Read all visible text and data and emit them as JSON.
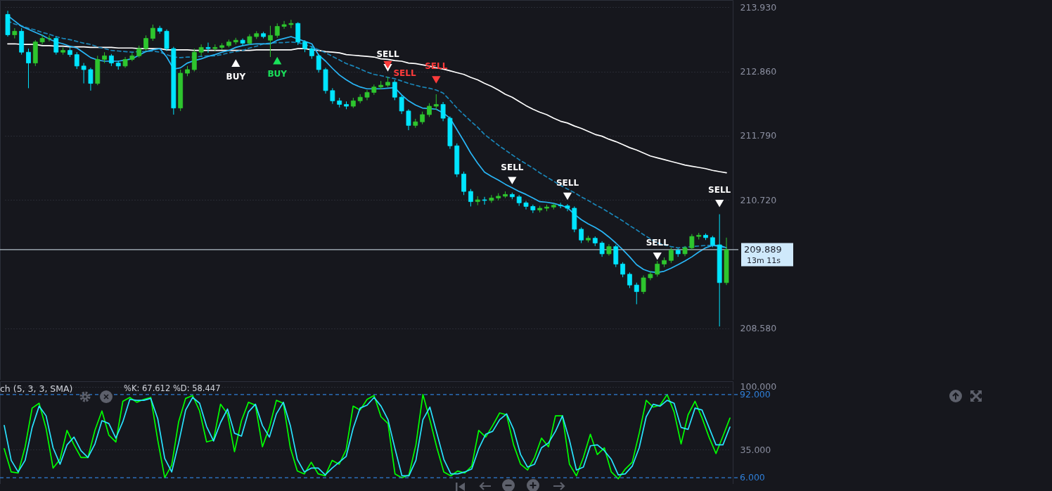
{
  "chart_data": [
    {
      "type": "candlestick",
      "categories": [
        null,
        null,
        null,
        null,
        null,
        null,
        null,
        null,
        null,
        null,
        null,
        null,
        null,
        null,
        null,
        null,
        null,
        null,
        null,
        null,
        null,
        null,
        null,
        null,
        null,
        null,
        null,
        null,
        null,
        null,
        null,
        null,
        null,
        null,
        null,
        null,
        null,
        null,
        null,
        null,
        null,
        null,
        null,
        null,
        null,
        null,
        null,
        null,
        null,
        null,
        null,
        null,
        null,
        null,
        null,
        null,
        null,
        null,
        null,
        null,
        null,
        null,
        null,
        null,
        null,
        null,
        null,
        null,
        null,
        null,
        null,
        null,
        null,
        null,
        null,
        null,
        null,
        null,
        null,
        null,
        null,
        null,
        null,
        null,
        null,
        null,
        null,
        null,
        null,
        null,
        null,
        null,
        null,
        null,
        null,
        null,
        null,
        null,
        null,
        null,
        null,
        null,
        null,
        null,
        null
      ],
      "ohlc": [
        [
          213.81,
          213.87,
          213.44,
          213.47
        ],
        [
          213.47,
          213.58,
          213.41,
          213.53
        ],
        [
          213.53,
          213.58,
          213.14,
          213.18
        ],
        [
          213.18,
          213.24,
          212.58,
          213.0
        ],
        [
          213.0,
          213.38,
          212.95,
          213.35
        ],
        [
          213.35,
          213.47,
          213.31,
          213.41
        ],
        [
          213.41,
          213.46,
          213.36,
          213.41
        ],
        [
          213.41,
          213.44,
          213.14,
          213.18
        ],
        [
          213.18,
          213.26,
          213.14,
          213.21
        ],
        [
          213.21,
          213.26,
          213.1,
          213.14
        ],
        [
          213.14,
          213.18,
          212.9,
          212.95
        ],
        [
          212.95,
          213.0,
          212.66,
          212.89
        ],
        [
          212.89,
          212.92,
          212.54,
          212.66
        ],
        [
          212.66,
          213.12,
          212.63,
          213.06
        ],
        [
          213.06,
          213.18,
          213.0,
          213.12
        ],
        [
          213.12,
          213.15,
          212.95,
          213.0
        ],
        [
          213.0,
          213.04,
          212.89,
          212.95
        ],
        [
          212.95,
          213.1,
          212.92,
          213.06
        ],
        [
          213.06,
          213.17,
          213.03,
          213.12
        ],
        [
          213.12,
          213.29,
          213.09,
          213.24
        ],
        [
          213.24,
          213.46,
          213.2,
          213.41
        ],
        [
          213.41,
          213.64,
          213.37,
          213.58
        ],
        [
          213.58,
          213.62,
          213.49,
          213.53
        ],
        [
          213.53,
          213.56,
          213.2,
          213.24
        ],
        [
          213.24,
          213.27,
          212.14,
          212.25
        ],
        [
          212.25,
          212.89,
          212.2,
          212.83
        ],
        [
          212.83,
          212.95,
          212.78,
          212.89
        ],
        [
          212.89,
          213.24,
          212.86,
          213.18
        ],
        [
          213.18,
          213.31,
          213.12,
          213.26
        ],
        [
          213.26,
          213.34,
          213.17,
          213.24
        ],
        [
          213.24,
          213.31,
          213.2,
          213.26
        ],
        [
          213.26,
          213.33,
          213.22,
          213.29
        ],
        [
          213.29,
          213.39,
          213.26,
          213.35
        ],
        [
          213.35,
          213.42,
          213.31,
          213.38
        ],
        [
          213.38,
          213.41,
          213.29,
          213.33
        ],
        [
          213.33,
          213.48,
          213.3,
          213.44
        ],
        [
          213.44,
          213.53,
          213.4,
          213.49
        ],
        [
          213.49,
          213.52,
          213.41,
          213.44
        ],
        [
          213.38,
          213.62,
          213.1,
          213.46
        ],
        [
          213.46,
          213.66,
          213.42,
          213.61
        ],
        [
          213.61,
          213.7,
          213.57,
          213.64
        ],
        [
          213.64,
          213.72,
          213.58,
          213.66
        ],
        [
          213.66,
          213.68,
          213.3,
          213.35
        ],
        [
          213.35,
          213.38,
          213.18,
          213.24
        ],
        [
          213.24,
          213.28,
          213.07,
          213.12
        ],
        [
          213.12,
          213.15,
          212.84,
          212.89
        ],
        [
          212.89,
          212.92,
          212.49,
          212.54
        ],
        [
          212.54,
          212.58,
          212.32,
          212.37
        ],
        [
          212.37,
          212.42,
          212.26,
          212.31
        ],
        [
          212.31,
          212.36,
          212.23,
          212.28
        ],
        [
          212.28,
          212.42,
          212.25,
          212.37
        ],
        [
          212.37,
          212.48,
          212.33,
          212.43
        ],
        [
          212.43,
          212.55,
          212.38,
          212.51
        ],
        [
          212.51,
          212.64,
          212.47,
          212.6
        ],
        [
          212.6,
          212.7,
          212.56,
          212.63
        ],
        [
          212.63,
          212.77,
          212.6,
          212.68
        ],
        [
          212.68,
          212.72,
          212.38,
          212.43
        ],
        [
          212.43,
          212.46,
          212.15,
          212.2
        ],
        [
          212.2,
          212.23,
          211.88,
          211.96
        ],
        [
          211.96,
          212.07,
          211.92,
          212.02
        ],
        [
          212.02,
          212.19,
          211.98,
          212.14
        ],
        [
          212.14,
          212.33,
          212.1,
          212.28
        ],
        [
          212.28,
          212.48,
          212.22,
          212.31
        ],
        [
          212.31,
          212.35,
          212.03,
          212.08
        ],
        [
          212.08,
          212.11,
          211.57,
          211.62
        ],
        [
          211.62,
          211.66,
          211.1,
          211.15
        ],
        [
          211.15,
          211.19,
          210.8,
          210.86
        ],
        [
          210.86,
          210.9,
          210.61,
          210.69
        ],
        [
          210.69,
          210.78,
          210.63,
          210.72
        ],
        [
          210.72,
          210.77,
          210.64,
          210.71
        ],
        [
          210.71,
          210.8,
          210.67,
          210.75
        ],
        [
          210.75,
          210.83,
          210.71,
          210.78
        ],
        [
          210.78,
          210.86,
          210.75,
          210.81
        ],
        [
          210.81,
          210.84,
          210.73,
          210.77
        ],
        [
          210.77,
          210.8,
          210.62,
          210.67
        ],
        [
          210.67,
          210.7,
          210.56,
          210.61
        ],
        [
          210.61,
          210.64,
          210.5,
          210.55
        ],
        [
          210.55,
          210.62,
          210.51,
          210.58
        ],
        [
          210.58,
          210.64,
          210.53,
          210.6
        ],
        [
          210.6,
          210.66,
          210.56,
          210.63
        ],
        [
          210.63,
          210.67,
          210.58,
          210.62
        ],
        [
          210.62,
          210.65,
          210.53,
          210.58
        ],
        [
          210.58,
          210.61,
          210.18,
          210.23
        ],
        [
          210.23,
          210.26,
          210.0,
          210.05
        ],
        [
          210.05,
          210.12,
          210.01,
          210.08
        ],
        [
          210.08,
          210.11,
          209.95,
          210.0
        ],
        [
          210.0,
          210.03,
          209.77,
          209.82
        ],
        [
          209.82,
          209.98,
          209.79,
          209.94
        ],
        [
          209.94,
          209.97,
          209.6,
          209.65
        ],
        [
          209.65,
          209.68,
          209.43,
          209.48
        ],
        [
          209.48,
          209.51,
          209.25,
          209.3
        ],
        [
          209.3,
          209.34,
          208.98,
          209.19
        ],
        [
          209.19,
          209.46,
          209.15,
          209.42
        ],
        [
          209.42,
          209.53,
          209.38,
          209.48
        ],
        [
          209.48,
          209.7,
          209.44,
          209.65
        ],
        [
          209.65,
          209.76,
          209.6,
          209.71
        ],
        [
          209.71,
          209.92,
          209.67,
          209.88
        ],
        [
          209.88,
          209.91,
          209.77,
          209.82
        ],
        [
          209.82,
          209.95,
          209.78,
          209.92
        ],
        [
          209.92,
          210.15,
          209.88,
          210.11
        ],
        [
          210.11,
          210.17,
          210.06,
          210.13
        ],
        [
          210.13,
          210.16,
          210.05,
          210.09
        ],
        [
          210.09,
          210.12,
          209.93,
          209.97
        ],
        [
          209.97,
          210.48,
          208.61,
          209.34
        ],
        [
          209.34,
          210.09,
          209.3,
          209.889
        ]
      ],
      "colors": [
        "#00e5ff",
        "#2ec52e",
        "#00e5ff",
        "#00e5ff",
        "#2ec52e",
        "#2ec52e",
        "#2ec52e",
        "#00e5ff",
        "#2ec52e",
        "#00e5ff",
        "#00e5ff",
        "#00e5ff",
        "#00e5ff",
        "#2ec52e",
        "#2ec52e",
        "#00e5ff",
        "#00e5ff",
        "#2ec52e",
        "#2ec52e",
        "#2ec52e",
        "#2ec52e",
        "#2ec52e",
        "#00e5ff",
        "#00e5ff",
        "#00e5ff",
        "#2ec52e",
        "#2ec52e",
        "#2ec52e",
        "#2ec52e",
        "#00e5ff",
        "#2ec52e",
        "#2ec52e",
        "#2ec52e",
        "#2ec52e",
        "#00e5ff",
        "#2ec52e",
        "#2ec52e",
        "#00e5ff",
        "#2ec52e",
        "#2ec52e",
        "#2ec52e",
        "#2ec52e",
        "#00e5ff",
        "#00e5ff",
        "#00e5ff",
        "#00e5ff",
        "#00e5ff",
        "#00e5ff",
        "#00e5ff",
        "#00e5ff",
        "#2ec52e",
        "#2ec52e",
        "#2ec52e",
        "#2ec52e",
        "#2ec52e",
        "#2ec52e",
        "#00e5ff",
        "#00e5ff",
        "#00e5ff",
        "#2ec52e",
        "#2ec52e",
        "#2ec52e",
        "#2ec52e",
        "#00e5ff",
        "#00e5ff",
        "#00e5ff",
        "#00e5ff",
        "#00e5ff",
        "#2ec52e",
        "#00e5ff",
        "#2ec52e",
        "#2ec52e",
        "#2ec52e",
        "#00e5ff",
        "#00e5ff",
        "#00e5ff",
        "#00e5ff",
        "#2ec52e",
        "#2ec52e",
        "#2ec52e",
        "#00e5ff",
        "#00e5ff",
        "#00e5ff",
        "#00e5ff",
        "#2ec52e",
        "#00e5ff",
        "#00e5ff",
        "#2ec52e",
        "#00e5ff",
        "#00e5ff",
        "#00e5ff",
        "#00e5ff",
        "#2ec52e",
        "#2ec52e",
        "#2ec52e",
        "#2ec52e",
        "#2ec52e",
        "#00e5ff",
        "#2ec52e",
        "#2ec52e",
        "#2ec52e",
        "#00e5ff",
        "#00e5ff",
        "#00e5ff",
        "#2ec52e"
      ],
      "series": [
        {
          "type": "line",
          "color": "#ffffff",
          "line_style": "solid",
          "values": [
            213.32,
            213.32,
            213.31,
            213.31,
            213.31,
            213.29,
            213.29,
            213.28,
            213.28,
            213.27,
            213.27,
            213.27,
            213.26,
            213.26,
            213.26,
            213.26,
            213.25,
            213.25,
            213.25,
            213.24,
            213.24,
            213.24,
            213.24,
            213.22,
            213.22,
            213.22,
            213.22,
            213.21,
            213.21,
            213.21,
            213.21,
            213.21,
            213.21,
            213.21,
            213.21,
            213.21,
            213.22,
            213.22,
            213.22,
            213.22,
            213.22,
            213.22,
            213.24,
            213.24,
            213.22,
            213.21,
            213.19,
            213.18,
            213.17,
            213.14,
            213.13,
            213.12,
            213.11,
            213.1,
            213.07,
            213.06,
            213.04,
            213.03,
            213.0,
            212.99,
            212.97,
            212.95,
            212.92,
            212.9,
            212.87,
            212.84,
            212.81,
            212.76,
            212.72,
            212.66,
            212.61,
            212.55,
            212.48,
            212.43,
            212.36,
            212.29,
            212.23,
            212.18,
            212.14,
            212.08,
            212.03,
            212.0,
            211.95,
            211.91,
            211.86,
            211.81,
            211.78,
            211.73,
            211.69,
            211.64,
            211.59,
            211.55,
            211.5,
            211.45,
            211.42,
            211.39,
            211.36,
            211.33,
            211.3,
            211.28,
            211.26,
            211.24,
            211.21,
            211.19,
            211.17
          ]
        },
        {
          "type": "line",
          "color": "#1a86b8",
          "line_style": "dashed",
          "values": [
            213.7,
            213.65,
            213.62,
            213.58,
            213.55,
            213.51,
            213.48,
            213.44,
            213.41,
            213.39,
            213.36,
            213.33,
            213.31,
            213.27,
            213.24,
            213.21,
            213.2,
            213.19,
            213.18,
            213.19,
            213.19,
            213.2,
            213.18,
            213.14,
            213.1,
            213.09,
            213.1,
            213.1,
            213.11,
            213.12,
            213.12,
            213.14,
            213.17,
            213.19,
            213.21,
            213.25,
            213.28,
            213.32,
            213.33,
            213.34,
            213.34,
            213.35,
            213.34,
            213.31,
            213.27,
            213.22,
            213.17,
            213.11,
            213.05,
            212.99,
            212.95,
            212.9,
            212.85,
            212.81,
            212.79,
            212.76,
            212.74,
            212.7,
            212.66,
            212.63,
            212.6,
            212.58,
            212.55,
            212.5,
            212.38,
            212.25,
            212.14,
            212.03,
            211.93,
            211.81,
            211.72,
            211.63,
            211.55,
            211.47,
            211.39,
            211.32,
            211.25,
            211.17,
            211.1,
            211.03,
            210.96,
            210.9,
            210.84,
            210.77,
            210.71,
            210.64,
            210.58,
            210.51,
            210.44,
            210.37,
            210.29,
            210.22,
            210.14,
            210.07,
            210.0,
            209.97,
            209.94,
            209.92,
            209.93,
            209.94,
            209.95,
            209.96,
            209.96,
            209.94,
            209.92
          ]
        },
        {
          "type": "line",
          "color": "#29b6f6",
          "line_style": "solid",
          "values": [
            213.79,
            213.7,
            213.61,
            213.56,
            213.51,
            213.46,
            213.4,
            213.35,
            213.32,
            213.28,
            213.25,
            213.17,
            213.09,
            213.05,
            213.03,
            213.03,
            213.03,
            213.05,
            213.07,
            213.13,
            213.19,
            213.22,
            213.24,
            213.1,
            212.9,
            212.92,
            213.0,
            213.04,
            213.07,
            213.11,
            213.14,
            213.18,
            213.21,
            213.26,
            213.29,
            213.31,
            213.32,
            213.32,
            213.32,
            213.38,
            213.41,
            213.44,
            213.4,
            213.36,
            213.32,
            213.13,
            213.03,
            212.91,
            212.8,
            212.72,
            212.65,
            212.6,
            212.57,
            212.57,
            212.57,
            212.58,
            212.59,
            212.47,
            212.37,
            212.3,
            212.25,
            212.24,
            212.23,
            212.17,
            212.08,
            211.89,
            211.7,
            211.5,
            211.33,
            211.18,
            211.11,
            211.05,
            210.98,
            210.92,
            210.86,
            210.81,
            210.75,
            210.69,
            210.68,
            210.66,
            210.63,
            210.59,
            210.48,
            210.39,
            210.32,
            210.26,
            210.19,
            210.1,
            210.0,
            209.89,
            209.77,
            209.64,
            209.56,
            209.52,
            209.51,
            209.53,
            209.58,
            209.64,
            209.7,
            209.77,
            209.85,
            209.92,
            209.96,
            209.96,
            209.92
          ]
        },
        {
          "type": "scatter",
          "color": "#ffffff",
          "marker": "triangle",
          "values": [
            null,
            null,
            null,
            null,
            null,
            null,
            null,
            null,
            null,
            null,
            null,
            null,
            null,
            null,
            null,
            null,
            null,
            null,
            null,
            null,
            null,
            null,
            null,
            null,
            null,
            null,
            null,
            null,
            null,
            null,
            null,
            null,
            null,
            213.0,
            null,
            null,
            null,
            null,
            null,
            null,
            null,
            null,
            null,
            null,
            null,
            null,
            null,
            null,
            null,
            null,
            null,
            null,
            null,
            null,
            null,
            212.92,
            null,
            null,
            null,
            null,
            null,
            null,
            null,
            null,
            null,
            null,
            null,
            null,
            null,
            null,
            null,
            null,
            null,
            211.04,
            null,
            null,
            null,
            null,
            null,
            null,
            null,
            210.78,
            null,
            null,
            null,
            null,
            null,
            null,
            null,
            null,
            null,
            null,
            null,
            null,
            209.78,
            null,
            null,
            null,
            null,
            null,
            null,
            null,
            null,
            210.66,
            null
          ],
          "value_labels": [
            null,
            null,
            null,
            null,
            null,
            null,
            null,
            null,
            null,
            null,
            null,
            null,
            null,
            null,
            null,
            null,
            null,
            null,
            null,
            null,
            null,
            null,
            null,
            null,
            null,
            null,
            null,
            null,
            null,
            null,
            null,
            null,
            null,
            "BUY",
            null,
            null,
            null,
            null,
            null,
            null,
            null,
            null,
            null,
            null,
            null,
            null,
            null,
            null,
            null,
            null,
            null,
            null,
            null,
            null,
            null,
            "SELL",
            null,
            null,
            null,
            null,
            null,
            null,
            null,
            null,
            null,
            null,
            null,
            null,
            null,
            null,
            null,
            null,
            null,
            "SELL",
            null,
            null,
            null,
            null,
            null,
            null,
            null,
            "SELL",
            null,
            null,
            null,
            null,
            null,
            null,
            null,
            null,
            null,
            null,
            null,
            null,
            "SELL",
            null,
            null,
            null,
            null,
            null,
            null,
            null,
            null,
            "SELL",
            null
          ]
        },
        {
          "type": "scatter",
          "color": "#19e05a",
          "marker": "triangle",
          "values": [
            null,
            null,
            null,
            null,
            null,
            null,
            null,
            null,
            null,
            null,
            null,
            null,
            null,
            null,
            null,
            null,
            null,
            null,
            null,
            null,
            null,
            null,
            null,
            null,
            null,
            null,
            null,
            null,
            null,
            null,
            null,
            null,
            null,
            null,
            null,
            null,
            null,
            null,
            null,
            213.04,
            null,
            null,
            null,
            null,
            null,
            null,
            null,
            null,
            null,
            null,
            null,
            null,
            null,
            null,
            null,
            null,
            null,
            null,
            null,
            null,
            null,
            null,
            null,
            null,
            null,
            null,
            null,
            null,
            null,
            null,
            null,
            null,
            null,
            null,
            null,
            null,
            null,
            null,
            null,
            null,
            null,
            null,
            null,
            null,
            null,
            null,
            null,
            null,
            null,
            null,
            null,
            null,
            null,
            null,
            null,
            null,
            null,
            null,
            null,
            null,
            null,
            null,
            null,
            null,
            null
          ],
          "value_labels": [
            null,
            null,
            null,
            null,
            null,
            null,
            null,
            null,
            null,
            null,
            null,
            null,
            null,
            null,
            null,
            null,
            null,
            null,
            null,
            null,
            null,
            null,
            null,
            null,
            null,
            null,
            null,
            null,
            null,
            null,
            null,
            null,
            null,
            null,
            null,
            null,
            null,
            null,
            null,
            "BUY",
            null,
            null,
            null,
            null,
            null,
            null,
            null,
            null,
            null,
            null,
            null,
            null,
            null,
            null,
            null,
            null,
            null,
            null,
            null,
            null,
            null,
            null,
            null,
            null,
            null,
            null,
            null,
            null,
            null,
            null,
            null,
            null,
            null,
            null,
            null,
            null,
            null,
            null,
            null,
            null,
            null,
            null,
            null,
            null,
            null,
            null,
            null,
            null,
            null,
            null,
            null,
            null,
            null,
            null,
            null,
            null,
            null,
            null,
            null,
            null,
            null,
            null,
            null,
            null,
            null
          ]
        },
        {
          "type": "scatter",
          "color": "#ff3b3b",
          "marker": "triangle",
          "values": [
            null,
            null,
            null,
            null,
            null,
            null,
            null,
            null,
            null,
            null,
            null,
            null,
            null,
            null,
            null,
            null,
            null,
            null,
            null,
            null,
            null,
            null,
            null,
            null,
            null,
            null,
            null,
            null,
            null,
            null,
            null,
            null,
            null,
            null,
            null,
            null,
            null,
            null,
            null,
            null,
            null,
            null,
            null,
            null,
            null,
            null,
            null,
            null,
            null,
            null,
            null,
            null,
            null,
            null,
            null,
            212.97,
            null,
            null,
            null,
            null,
            null,
            null,
            212.72,
            null,
            null,
            null,
            null,
            null,
            null,
            null,
            null,
            null,
            null,
            null,
            null,
            null,
            null,
            null,
            null,
            null,
            null,
            null,
            null,
            null,
            null,
            null,
            null,
            null,
            null,
            null,
            null,
            null,
            null,
            null,
            null,
            null,
            null,
            null,
            null,
            null,
            null,
            null,
            null,
            null,
            null
          ],
          "value_labels": [
            null,
            null,
            null,
            null,
            null,
            null,
            null,
            null,
            null,
            null,
            null,
            null,
            null,
            null,
            null,
            null,
            null,
            null,
            null,
            null,
            null,
            null,
            null,
            null,
            null,
            null,
            null,
            null,
            null,
            null,
            null,
            null,
            null,
            null,
            null,
            null,
            null,
            null,
            null,
            null,
            null,
            null,
            null,
            null,
            null,
            null,
            null,
            null,
            null,
            null,
            null,
            null,
            null,
            null,
            null,
            "SELL",
            null,
            null,
            null,
            null,
            null,
            null,
            "SELL",
            null,
            null,
            null,
            null,
            null,
            null,
            null,
            null,
            null,
            null,
            null,
            null,
            null,
            null,
            null,
            null,
            null,
            null,
            null,
            null,
            null,
            null,
            null,
            null,
            null,
            null,
            null,
            null,
            null,
            null,
            null,
            null,
            null,
            null,
            null,
            null,
            null,
            null,
            null,
            null,
            null,
            null
          ]
        }
      ],
      "ylim": [
        207.72,
        214.05
      ],
      "yticks": [
        {
          "value": 213.93,
          "label": "213.930"
        },
        {
          "value": 212.86,
          "label": "212.860"
        },
        {
          "value": 211.79,
          "label": "211.790"
        },
        {
          "value": 210.72,
          "label": "210.720"
        },
        {
          "value": 208.58,
          "label": "208.580"
        }
      ],
      "grid": "y",
      "tick_labels": "y",
      "ref_lines": [
        {
          "axis": "y",
          "value": 209.889,
          "label": "209.889",
          "color": "#b2c0c8",
          "line_style": "solid"
        }
      ],
      "annotations": [
        "13m 11s"
      ]
    },
    {
      "type": "line",
      "title": "ch (5, 3, 3, SMA)",
      "categories": [
        null,
        null,
        null,
        null,
        null,
        null,
        null,
        null,
        null,
        null,
        null,
        null,
        null,
        null,
        null,
        null,
        null,
        null,
        null,
        null,
        null,
        null,
        null,
        null,
        null,
        null,
        null,
        null,
        null,
        null,
        null,
        null,
        null,
        null,
        null,
        null,
        null,
        null,
        null,
        null,
        null,
        null,
        null,
        null,
        null,
        null,
        null,
        null,
        null,
        null,
        null,
        null,
        null,
        null,
        null,
        null,
        null,
        null,
        null,
        null,
        null,
        null,
        null,
        null,
        null,
        null,
        null,
        null,
        null,
        null,
        null,
        null,
        null,
        null,
        null,
        null,
        null,
        null,
        null,
        null,
        null,
        null,
        null,
        null,
        null,
        null,
        null,
        null,
        null,
        null,
        null,
        null,
        null,
        null,
        null,
        null,
        null,
        null,
        null,
        null,
        null,
        null,
        null,
        null,
        null
      ],
      "series": [
        {
          "color": "#00ff00",
          "line_style": "solid",
          "values": [
            36,
            12,
            11,
            38,
            78,
            83,
            57,
            16,
            25,
            55,
            40,
            27,
            27,
            55,
            75,
            50,
            43,
            85,
            89,
            84,
            87,
            89,
            45,
            6,
            19,
            64,
            88,
            91,
            75,
            43,
            45,
            82,
            72,
            33,
            65,
            84,
            81,
            38,
            58,
            86,
            83,
            37,
            13,
            10,
            22,
            10,
            8,
            24,
            20,
            35,
            80,
            76,
            87,
            91,
            69,
            62,
            10,
            6,
            9,
            40,
            92,
            66,
            37,
            12,
            8,
            13,
            11,
            18,
            55,
            48,
            60,
            73,
            71,
            40,
            20,
            14,
            27,
            47,
            38,
            70,
            70,
            20,
            8,
            27,
            51,
            30,
            37,
            12,
            5,
            15,
            22,
            52,
            86,
            79,
            81,
            92,
            74,
            41,
            71,
            85,
            68,
            48,
            31,
            49,
            67.612
          ]
        },
        {
          "color": "#29e3ff",
          "line_style": "solid",
          "values": [
            60,
            24,
            12,
            24,
            58,
            80,
            70,
            37,
            20,
            40,
            48,
            34,
            27,
            41,
            65,
            62,
            47,
            64,
            87,
            86,
            86,
            88,
            67,
            26,
            12,
            42,
            76,
            89,
            83,
            59,
            44,
            63,
            77,
            52,
            49,
            74,
            82,
            60,
            48,
            72,
            84,
            60,
            25,
            12,
            16,
            16,
            9,
            16,
            22,
            28,
            57,
            78,
            81,
            89,
            80,
            66,
            36,
            8,
            8,
            24,
            66,
            79,
            52,
            25,
            10,
            10,
            12,
            15,
            36,
            51,
            54,
            66,
            72,
            56,
            30,
            17,
            20,
            37,
            42,
            54,
            70,
            45,
            14,
            17,
            39,
            40,
            34,
            25,
            9,
            10,
            18,
            37,
            69,
            82,
            80,
            86,
            83,
            58,
            56,
            78,
            76,
            58,
            40,
            40,
            58.447
          ]
        }
      ],
      "ylim": [
        -0.4,
        105.7
      ],
      "yticks": [
        {
          "value": 100,
          "label": "100.000"
        },
        {
          "value": 35,
          "label": "35.000"
        }
      ],
      "grid": "y",
      "tick_labels": "y",
      "ref_lines": [
        {
          "axis": "y",
          "value": 92,
          "label": "92.000",
          "color": "#2f7fd8",
          "line_style": "dashed"
        },
        {
          "axis": "y",
          "value": 6,
          "label": "6.000",
          "color": "#2f7fd8",
          "line_style": "dashed"
        }
      ],
      "annotations": [
        "%K: 67.612  %D: 58.447"
      ]
    }
  ]
}
